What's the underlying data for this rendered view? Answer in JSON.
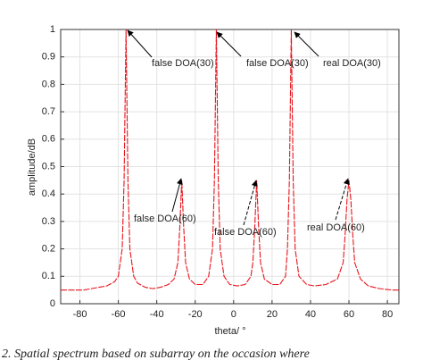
{
  "chart_data": {
    "type": "line",
    "xlabel": "theta/ °",
    "ylabel": "amplitude/dB",
    "caption": "2. Spatial spectrum based on subarray on the occasion where",
    "x": [
      -90,
      -86,
      -82,
      -78,
      -74,
      -70,
      -66,
      -62,
      -60,
      -58,
      -57,
      -56,
      -55,
      -54,
      -52,
      -50,
      -46,
      -42,
      -38,
      -34,
      -31,
      -29,
      -28,
      -27,
      -26,
      -25,
      -23,
      -20,
      -16,
      -13,
      -11,
      -10,
      -9,
      -8,
      -7,
      -5,
      -2,
      2,
      6,
      9,
      10,
      11,
      12,
      13,
      14,
      16,
      20,
      24,
      27,
      28,
      29,
      30,
      31,
      32,
      34,
      38,
      42,
      48,
      54,
      57,
      58,
      59,
      60,
      61,
      62,
      63,
      66,
      70,
      76,
      82,
      86
    ],
    "series": [
      {
        "color": "#e8141c",
        "values": [
          0.05,
          0.05,
          0.05,
          0.05,
          0.055,
          0.06,
          0.065,
          0.08,
          0.1,
          0.2,
          0.45,
          1,
          0.45,
          0.2,
          0.1,
          0.075,
          0.06,
          0.055,
          0.06,
          0.07,
          0.09,
          0.15,
          0.28,
          0.45,
          0.28,
          0.15,
          0.09,
          0.07,
          0.07,
          0.1,
          0.2,
          0.45,
          1,
          0.45,
          0.2,
          0.1,
          0.07,
          0.065,
          0.07,
          0.1,
          0.15,
          0.28,
          0.45,
          0.28,
          0.15,
          0.09,
          0.07,
          0.07,
          0.1,
          0.2,
          0.45,
          1,
          0.45,
          0.2,
          0.1,
          0.07,
          0.065,
          0.07,
          0.09,
          0.15,
          0.25,
          0.38,
          0.45,
          0.38,
          0.25,
          0.15,
          0.09,
          0.065,
          0.055,
          0.05,
          0.05
        ]
      }
    ],
    "xlim": [
      -90,
      86
    ],
    "xticks": [
      -80,
      -60,
      -40,
      -20,
      0,
      20,
      40,
      60,
      80
    ],
    "ylim": [
      0,
      1
    ],
    "yticks": [
      0,
      0.1,
      0.2,
      0.3,
      0.4,
      0.5,
      0.6,
      0.7,
      0.8,
      0.9,
      1
    ],
    "grid": true,
    "annotations": [
      "false DOA(30)",
      "false DOA(30)",
      "real DOA(30)",
      "false DOA(60)",
      "false DOA(60)",
      "real DOA(60)"
    ]
  }
}
